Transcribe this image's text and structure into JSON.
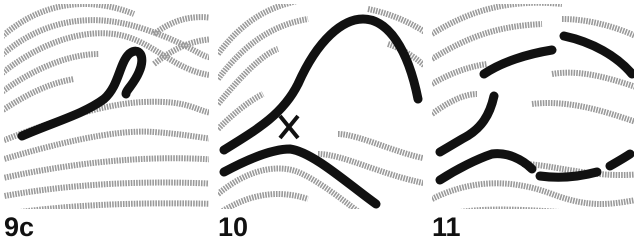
{
  "panels": [
    {
      "label": "9c"
    },
    {
      "label": "10"
    },
    {
      "label": "11"
    }
  ]
}
